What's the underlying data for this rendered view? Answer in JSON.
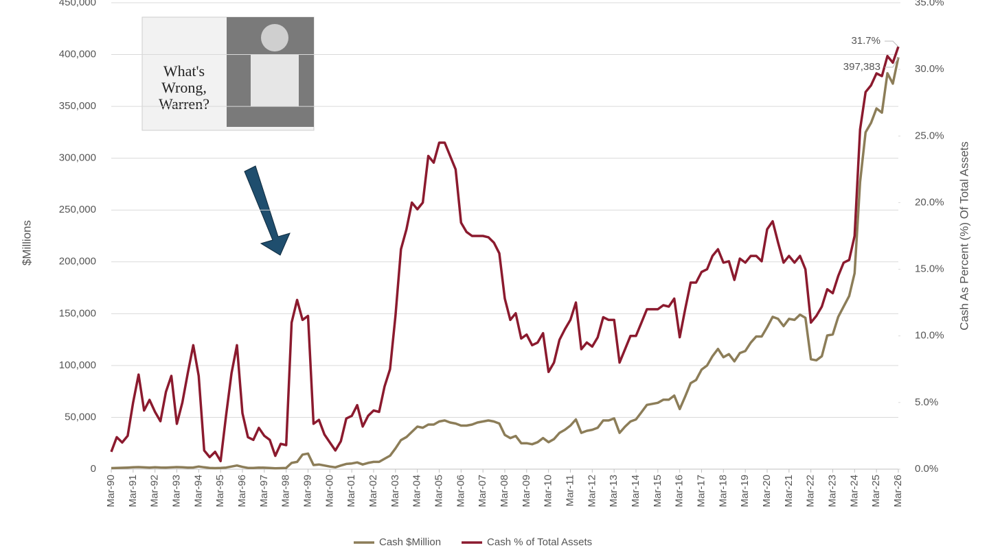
{
  "chart_data": {
    "type": "line",
    "categories": [
      "Mar-90",
      null,
      null,
      null,
      "Mar-91",
      null,
      null,
      null,
      "Mar-92",
      null,
      null,
      null,
      "Mar-93",
      null,
      null,
      null,
      "Mar-94",
      null,
      null,
      null,
      "Mar-95",
      null,
      null,
      null,
      "Mar-96",
      null,
      null,
      null,
      "Mar-97",
      null,
      null,
      null,
      "Mar-98",
      null,
      null,
      null,
      "Mar-99",
      null,
      null,
      null,
      "Mar-00",
      null,
      null,
      null,
      "Mar-01",
      null,
      null,
      null,
      "Mar-02",
      null,
      null,
      null,
      "Mar-03",
      null,
      null,
      null,
      "Mar-04",
      null,
      null,
      null,
      "Mar-05",
      null,
      null,
      null,
      "Mar-06",
      null,
      null,
      null,
      "Mar-07",
      null,
      null,
      null,
      "Mar-08",
      null,
      null,
      null,
      "Mar-09",
      null,
      null,
      null,
      "Mar-10",
      null,
      null,
      null,
      "Mar-11",
      null,
      null,
      null,
      "Mar-12",
      null,
      null,
      null,
      "Mar-13",
      null,
      null,
      null,
      "Mar-14",
      null,
      null,
      null,
      "Mar-15",
      null,
      null,
      null,
      "Mar-16",
      null,
      null,
      null,
      "Mar-17",
      null,
      null,
      null,
      "Mar-18",
      null,
      null,
      null,
      "Mar-19",
      null,
      null,
      null,
      "Mar-20",
      null,
      null,
      null,
      "Mar-21",
      null,
      null,
      null,
      "Mar-22",
      null,
      null,
      null,
      "Mar-23",
      null,
      null,
      null,
      "Mar-24",
      null,
      null,
      null,
      "Mar-25",
      null,
      null,
      null,
      "Mar-26"
    ],
    "series": [
      {
        "name": "Cash $Million",
        "color": "#8c7d58",
        "values": [
          1000,
          1200,
          1300,
          1500,
          1800,
          2000,
          1700,
          1500,
          1800,
          1600,
          1500,
          1700,
          2000,
          1800,
          1500,
          1600,
          2500,
          1800,
          1200,
          1000,
          1100,
          1500,
          2500,
          3500,
          2200,
          1200,
          1100,
          1500,
          1400,
          1200,
          800,
          1000,
          1200,
          6000,
          7000,
          14000,
          15000,
          4000,
          4500,
          3500,
          2500,
          1800,
          3500,
          5000,
          5500,
          6500,
          4500,
          6000,
          7000,
          7000,
          10000,
          13000,
          20000,
          28000,
          31000,
          36000,
          41000,
          40000,
          43000,
          43000,
          46000,
          47000,
          45000,
          44000,
          42000,
          42000,
          43000,
          45000,
          46000,
          47000,
          46000,
          44000,
          33000,
          30000,
          32000,
          25000,
          25000,
          24000,
          26000,
          30000,
          26000,
          29000,
          35000,
          38000,
          42000,
          48000,
          35000,
          37000,
          38000,
          40000,
          47000,
          47000,
          49000,
          35000,
          41000,
          46000,
          48000,
          55000,
          62000,
          63000,
          64000,
          67000,
          67000,
          71000,
          58000,
          70000,
          83000,
          86000,
          96000,
          100000,
          109000,
          116000,
          108000,
          111000,
          104000,
          112000,
          114000,
          122000,
          128000,
          128000,
          137000,
          147000,
          145000,
          138000,
          145000,
          144000,
          149000,
          146000,
          106000,
          105000,
          109000,
          129000,
          130000,
          147000,
          157000,
          167000,
          189000,
          277000,
          325000,
          334000,
          348000,
          344000,
          382000,
          372000,
          397383
        ]
      },
      {
        "name": "Cash % of Total Assets",
        "color": "#8b1a2e",
        "axis": "y2",
        "values": [
          1.3,
          2.4,
          2.0,
          2.5,
          5.0,
          7.1,
          4.4,
          5.2,
          4.3,
          3.6,
          5.8,
          7.0,
          3.4,
          5.0,
          7.2,
          9.3,
          7.0,
          1.4,
          0.9,
          1.3,
          0.6,
          4.0,
          7.2,
          9.3,
          4.2,
          2.4,
          2.2,
          3.1,
          2.5,
          2.2,
          1.0,
          1.9,
          1.8,
          11.0,
          12.7,
          11.2,
          11.5,
          3.4,
          3.7,
          2.6,
          2.0,
          1.4,
          2.1,
          3.8,
          4.0,
          4.8,
          3.2,
          4.0,
          4.4,
          4.3,
          6.2,
          7.5,
          11.5,
          16.5,
          18.0,
          20.0,
          19.5,
          20.0,
          23.5,
          23.0,
          24.5,
          24.5,
          23.5,
          22.5,
          18.5,
          17.8,
          17.5,
          17.5,
          17.5,
          17.4,
          17.0,
          16.2,
          12.8,
          11.2,
          11.7,
          9.8,
          10.1,
          9.3,
          9.5,
          10.2,
          7.3,
          8.0,
          9.7,
          10.5,
          11.2,
          12.5,
          9.0,
          9.5,
          9.2,
          9.9,
          11.4,
          11.2,
          11.2,
          8.0,
          9.0,
          10.0,
          10.0,
          11.0,
          12.0,
          12.0,
          12.0,
          12.3,
          12.2,
          12.8,
          9.9,
          12.0,
          14.0,
          14.0,
          14.8,
          15.0,
          16.0,
          16.5,
          15.5,
          15.6,
          14.2,
          15.8,
          15.5,
          16.0,
          16.0,
          15.6,
          18.0,
          18.6,
          17.0,
          15.5,
          16.0,
          15.5,
          16.0,
          15.0,
          11.0,
          11.5,
          12.2,
          13.5,
          13.2,
          14.5,
          15.5,
          15.7,
          17.5,
          25.5,
          28.3,
          28.8,
          29.7,
          29.5,
          31.0,
          30.5,
          31.7
        ]
      }
    ],
    "annotations": [
      "31.7%",
      "397,383"
    ],
    "ylabel": "$Millions",
    "y2label": "Cash As Percent (%) Of Total Assets",
    "ylim": [
      0,
      450000
    ],
    "yticks": [
      0,
      {
        "value": 50000,
        "label": "50,000"
      },
      {
        "value": 100000,
        "label": "100,000"
      },
      {
        "value": 150000,
        "label": "150,000"
      },
      {
        "value": 200000,
        "label": "200,000"
      },
      {
        "value": 250000,
        "label": "250,000"
      },
      {
        "value": 300000,
        "label": "300,000"
      },
      {
        "value": 350000,
        "label": "350,000"
      },
      {
        "value": 400000,
        "label": "400,000"
      },
      {
        "value": 450000,
        "label": "450,000"
      }
    ],
    "y2lim": [
      0,
      35
    ],
    "y2ticks": [
      {
        "value": 0,
        "label": "0.0%"
      },
      {
        "value": 5,
        "label": "5.0%"
      },
      {
        "value": 10,
        "label": "10.0%"
      },
      {
        "value": 15,
        "label": "15.0%"
      },
      {
        "value": 20,
        "label": "20.0%"
      },
      {
        "value": 25,
        "label": "25.0%"
      },
      {
        "value": 30,
        "label": "30.0%"
      },
      {
        "value": 35,
        "label": "35.0%"
      }
    ],
    "grid": true,
    "legend": "bottom"
  },
  "inset": {
    "headline": "What's Wrong, Warren?"
  }
}
